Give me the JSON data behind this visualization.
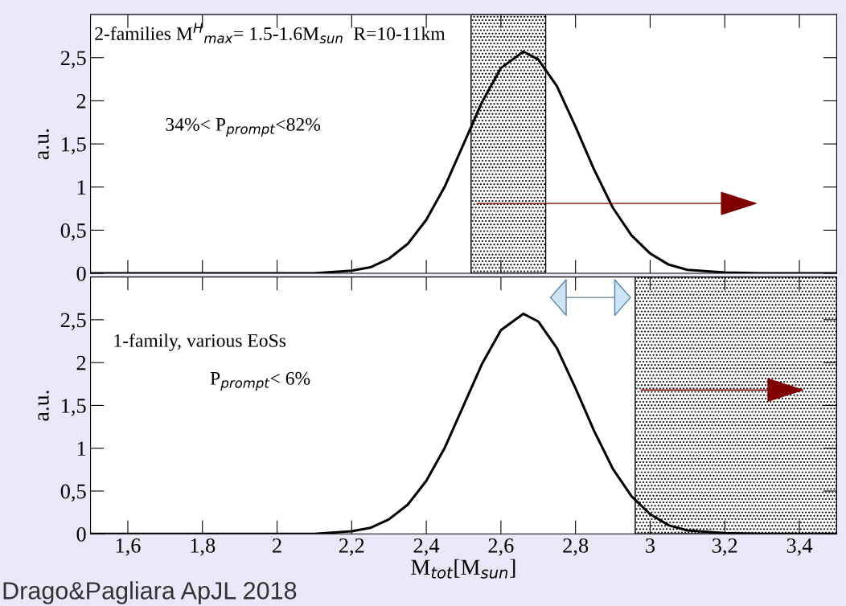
{
  "chart_data": [
    {
      "type": "line",
      "ylabel": "a.u.",
      "x": [
        1.5,
        2.0,
        2.1,
        2.2,
        2.25,
        2.3,
        2.35,
        2.4,
        2.45,
        2.5,
        2.55,
        2.6,
        2.66,
        2.7,
        2.75,
        2.8,
        2.85,
        2.9,
        2.95,
        3.0,
        3.05,
        3.1,
        3.2,
        3.3,
        3.5
      ],
      "series": [
        {
          "color": "#000000",
          "values": [
            0,
            0,
            0,
            0.03,
            0.07,
            0.17,
            0.34,
            0.62,
            1.01,
            1.5,
            1.99,
            2.38,
            2.57,
            2.48,
            2.17,
            1.7,
            1.2,
            0.76,
            0.44,
            0.23,
            0.1,
            0.04,
            0.01,
            0,
            0
          ]
        }
      ],
      "xlim": [
        1.5,
        3.5
      ],
      "xticks": [
        1.6,
        1.8,
        2,
        2.2,
        2.4,
        2.6,
        2.8,
        3,
        3.2,
        3.4
      ],
      "ylim": [
        0,
        3
      ],
      "yticks": [
        {
          "value": 0,
          "label": "0"
        },
        {
          "value": 0.5,
          "label": "0,5"
        },
        {
          "value": 1,
          "label": "1"
        },
        {
          "value": 1.5,
          "label": "1,5"
        },
        {
          "value": 2,
          "label": "2"
        },
        {
          "value": 2.5,
          "label": "2,5"
        }
      ],
      "tick_labels": "y",
      "bands": [
        {
          "axis": "x",
          "from": 2.52,
          "to": 2.72,
          "color": "#000000"
        }
      ],
      "annotations": [
        "2-families M$^{H}$$_{max}$= 1.5-1.6M$_{sun}$  R=10-11km",
        "34%< P$_{prompt}$<82%"
      ]
    },
    {
      "type": "line",
      "ylabel": "a.u.",
      "xlabel": "M$_{tot}$[M$_{sun}$]",
      "x": [
        1.5,
        2.0,
        2.1,
        2.2,
        2.25,
        2.3,
        2.35,
        2.4,
        2.45,
        2.5,
        2.55,
        2.6,
        2.66,
        2.7,
        2.75,
        2.8,
        2.85,
        2.9,
        2.95,
        3.0,
        3.05,
        3.1,
        3.2,
        3.3,
        3.5
      ],
      "series": [
        {
          "color": "#000000",
          "values": [
            0,
            0,
            0,
            0.03,
            0.07,
            0.17,
            0.34,
            0.62,
            1.01,
            1.5,
            1.99,
            2.38,
            2.57,
            2.48,
            2.17,
            1.7,
            1.2,
            0.76,
            0.44,
            0.23,
            0.1,
            0.04,
            0.01,
            0,
            0
          ]
        }
      ],
      "xlim": [
        1.5,
        3.5
      ],
      "xticks": [
        {
          "value": 1.6,
          "label": "1,6"
        },
        {
          "value": 1.8,
          "label": "1,8"
        },
        2,
        {
          "value": 2.2,
          "label": "2,2"
        },
        {
          "value": 2.4,
          "label": "2,4"
        },
        {
          "value": 2.6,
          "label": "2,6"
        },
        {
          "value": 2.8,
          "label": "2,8"
        },
        3,
        {
          "value": 3.2,
          "label": "3,2"
        },
        {
          "value": 3.4,
          "label": "3,4"
        }
      ],
      "ylim": [
        0,
        3
      ],
      "yticks": [
        {
          "value": 0,
          "label": "0"
        },
        {
          "value": 0.5,
          "label": "0,5"
        },
        {
          "value": 1,
          "label": "1"
        },
        {
          "value": 1.5,
          "label": "1,5"
        },
        {
          "value": 2,
          "label": "2"
        },
        {
          "value": 2.5,
          "label": "2,5"
        }
      ],
      "bands": [
        {
          "axis": "x",
          "from": 2.96,
          "to": 3.5,
          "color": "#000000"
        }
      ],
      "annotations": [
        "1-family, various EoSs",
        "P$_{prompt}$< 6%",
        "Drago&Pagliara ApJL 2018"
      ]
    }
  ]
}
